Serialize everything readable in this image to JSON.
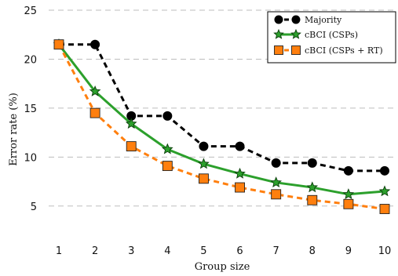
{
  "chart_data": {
    "type": "line",
    "title": "",
    "xlabel": "Group size",
    "ylabel": "Error rate (%)",
    "x": [
      1,
      2,
      3,
      4,
      5,
      6,
      7,
      8,
      9,
      10
    ],
    "xlim": [
      1,
      10
    ],
    "ylim": [
      2.5,
      25
    ],
    "yticks": [
      5,
      10,
      15,
      20,
      25
    ],
    "grid": "horizontal-dashed",
    "legend_position": "top-right",
    "series": [
      {
        "name": "Majority",
        "values": [
          21.5,
          21.5,
          14.2,
          14.2,
          11.1,
          11.1,
          9.4,
          9.4,
          8.6,
          8.6
        ],
        "color": "#000000",
        "line": "dashed",
        "marker": "circle"
      },
      {
        "name": "cBCI (CSPs)",
        "values": [
          21.5,
          16.7,
          13.4,
          10.8,
          9.3,
          8.3,
          7.4,
          6.9,
          6.2,
          6.5
        ],
        "color": "#2ca02c",
        "line": "solid",
        "marker": "star"
      },
      {
        "name": "cBCI (CSPs + RT)",
        "values": [
          21.5,
          14.5,
          11.1,
          9.1,
          7.8,
          6.9,
          6.2,
          5.6,
          5.2,
          4.7
        ],
        "color": "#ff7f0e",
        "line": "dashed",
        "marker": "square"
      }
    ]
  }
}
